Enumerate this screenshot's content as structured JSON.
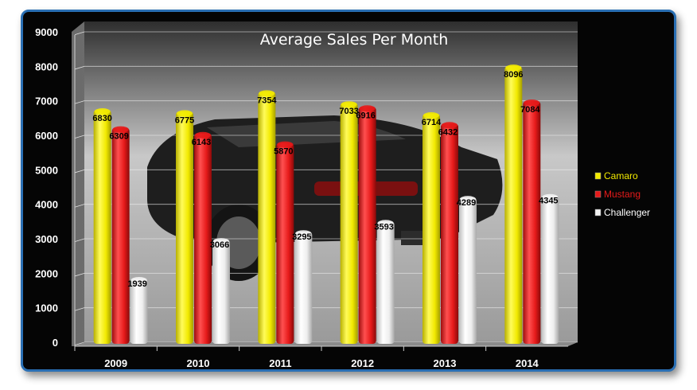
{
  "chart_data": {
    "type": "bar",
    "title": "Average Sales Per Month",
    "categories": [
      "2009",
      "2010",
      "2011",
      "2012",
      "2013",
      "2014"
    ],
    "series": [
      {
        "name": "Camaro",
        "color": "#f2ea00",
        "values": [
          6830,
          6775,
          7354,
          7033,
          6714,
          8096
        ]
      },
      {
        "name": "Mustang",
        "color": "#e61a1a",
        "values": [
          6309,
          6143,
          5870,
          6916,
          6432,
          7084
        ]
      },
      {
        "name": "Challenger",
        "color": "#f2f2f2",
        "values": [
          1939,
          3066,
          3295,
          3593,
          4289,
          4345
        ]
      }
    ],
    "ylim": [
      0,
      9000
    ],
    "yticks": [
      0,
      1000,
      2000,
      3000,
      4000,
      5000,
      6000,
      7000,
      8000,
      9000
    ],
    "grid": true,
    "legend_position": "right",
    "legend_text_colors": {
      "Camaro": "#f2ea00",
      "Mustang": "#e61a1a",
      "Challenger": "#ffffff"
    }
  }
}
